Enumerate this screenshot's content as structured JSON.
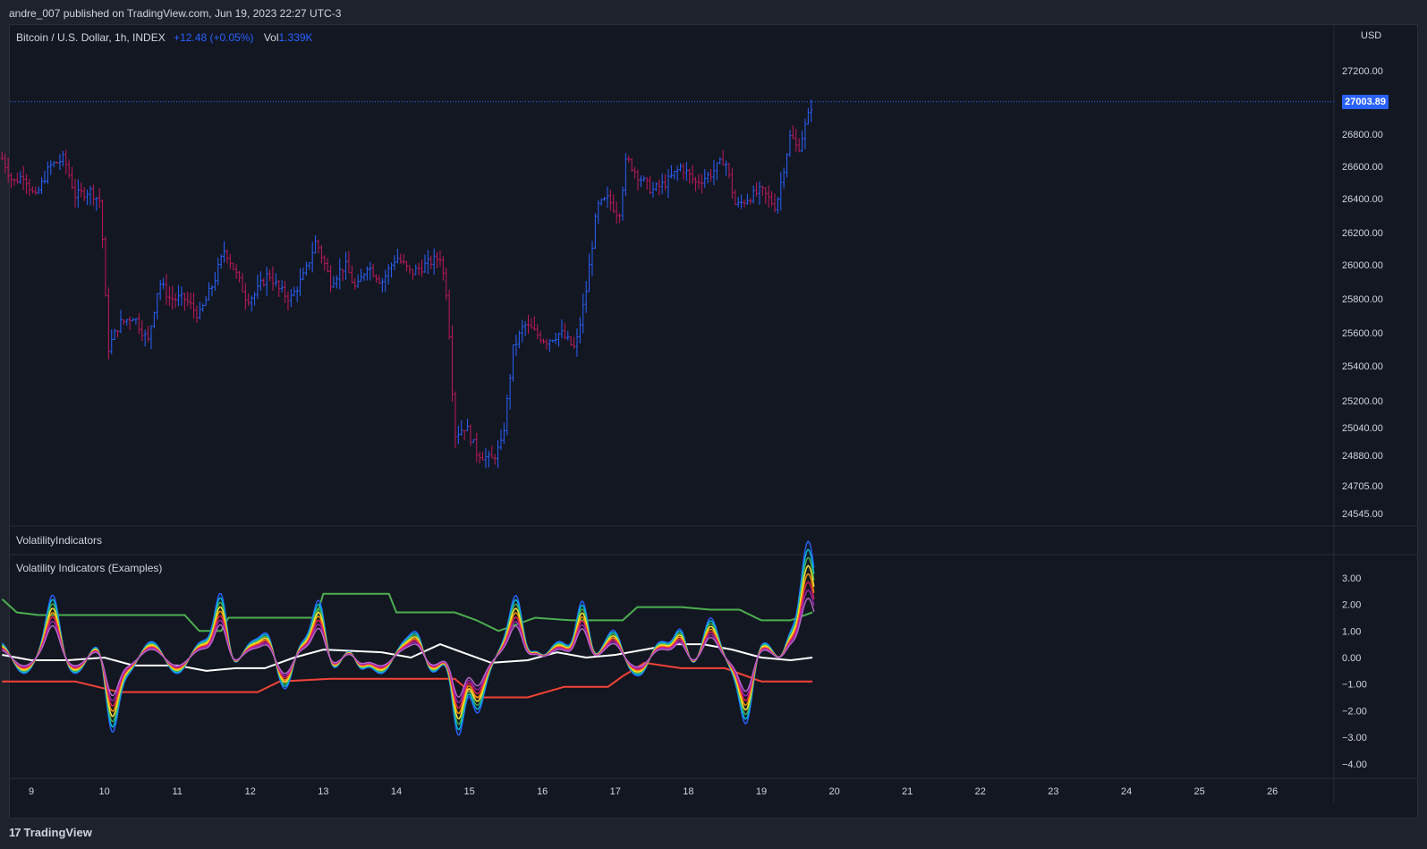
{
  "header": {
    "publisher_line": "andre_007 published on TradingView.com, Jun 19, 2023 22:27 UTC-3"
  },
  "legend": {
    "symbol": "Bitcoin / U.S. Dollar, 1h, INDEX",
    "change": "+12.48 (+0.05%)",
    "vol_label": "Vol",
    "vol_value": "1.339K"
  },
  "price_axis": {
    "currency": "USD",
    "last_price_label": "27003.89",
    "ticks": [
      "27200.00",
      "26800.00",
      "26600.00",
      "26400.00",
      "26200.00",
      "26000.00",
      "25800.00",
      "25600.00",
      "25400.00",
      "25200.00",
      "25040.00",
      "24880.00",
      "24705.00",
      "24545.00"
    ]
  },
  "panes": {
    "volatility_header": "VolatilityIndicators",
    "indicator_title": "Volatility Indicators (Examples)"
  },
  "time_axis": {
    "labels": [
      "9",
      "10",
      "11",
      "12",
      "13",
      "14",
      "15",
      "16",
      "17",
      "18",
      "19",
      "20",
      "21",
      "22",
      "23",
      "24",
      "25",
      "26"
    ]
  },
  "footer": {
    "brand": "TradingView",
    "logo_glyph": "17"
  },
  "colors": {
    "background": "#131722",
    "bull": "#2962ff",
    "bear": "#c2185b",
    "upper_band": "#4caf50",
    "lower_band": "#f44336",
    "mid_line": "#ffffff",
    "price_line": "#2962ff"
  },
  "chart_data": [
    {
      "type": "candlestick",
      "title": "Bitcoin / U.S. Dollar, 1h, INDEX",
      "x_unit": "day",
      "y_range": [
        24545,
        27300
      ],
      "last_price": 27003.89,
      "closes": [
        [
          8.6,
          26650
        ],
        [
          8.75,
          26500
        ],
        [
          8.9,
          26550
        ],
        [
          9.05,
          26400
        ],
        [
          9.25,
          26600
        ],
        [
          9.45,
          26650
        ],
        [
          9.6,
          26420
        ],
        [
          9.8,
          26450
        ],
        [
          9.95,
          26380
        ],
        [
          10.05,
          25500
        ],
        [
          10.2,
          25650
        ],
        [
          10.4,
          25700
        ],
        [
          10.6,
          25550
        ],
        [
          10.75,
          25900
        ],
        [
          10.9,
          25800
        ],
        [
          11.1,
          25800
        ],
        [
          11.3,
          25700
        ],
        [
          11.5,
          25900
        ],
        [
          11.65,
          26100
        ],
        [
          11.8,
          25950
        ],
        [
          11.95,
          25800
        ],
        [
          12.05,
          25820
        ],
        [
          12.25,
          25950
        ],
        [
          12.4,
          25850
        ],
        [
          12.55,
          25800
        ],
        [
          12.75,
          25950
        ],
        [
          12.9,
          26150
        ],
        [
          13.1,
          25900
        ],
        [
          13.3,
          26000
        ],
        [
          13.45,
          25850
        ],
        [
          13.6,
          26000
        ],
        [
          13.8,
          25900
        ],
        [
          14.0,
          26050
        ],
        [
          14.2,
          25950
        ],
        [
          14.4,
          26000
        ],
        [
          14.6,
          26050
        ],
        [
          14.7,
          25800
        ],
        [
          14.8,
          25000
        ],
        [
          14.95,
          25050
        ],
        [
          15.1,
          24900
        ],
        [
          15.3,
          24850
        ],
        [
          15.45,
          24950
        ],
        [
          15.6,
          25500
        ],
        [
          15.75,
          25650
        ],
        [
          15.9,
          25600
        ],
        [
          16.05,
          25550
        ],
        [
          16.25,
          25600
        ],
        [
          16.45,
          25500
        ],
        [
          16.6,
          25850
        ],
        [
          16.75,
          26350
        ],
        [
          16.9,
          26400
        ],
        [
          17.05,
          26300
        ],
        [
          17.15,
          26650
        ],
        [
          17.3,
          26550
        ],
        [
          17.5,
          26450
        ],
        [
          17.7,
          26500
        ],
        [
          17.9,
          26600
        ],
        [
          18.1,
          26500
        ],
        [
          18.3,
          26550
        ],
        [
          18.5,
          26650
        ],
        [
          18.65,
          26350
        ],
        [
          18.8,
          26400
        ],
        [
          19.0,
          26450
        ],
        [
          19.2,
          26350
        ],
        [
          19.4,
          26800
        ],
        [
          19.5,
          26700
        ],
        [
          19.6,
          26850
        ],
        [
          19.7,
          27003
        ]
      ]
    },
    {
      "type": "line",
      "title": "Volatility Indicators (Examples)",
      "y_range": [
        -4.5,
        3.3
      ],
      "y_ticks": [
        "3.00",
        "2.00",
        "1.00",
        "0.00",
        "−1.00",
        "−2.00",
        "−3.00",
        "−4.00"
      ],
      "series": [
        {
          "points": [
            [
              8.6,
              2.2
            ],
            [
              8.8,
              1.7
            ],
            [
              9.1,
              1.6
            ],
            [
              9.4,
              1.6
            ],
            [
              10.5,
              1.6
            ],
            [
              11.1,
              1.6
            ],
            [
              11.3,
              1.0
            ],
            [
              11.6,
              1.0
            ],
            [
              11.7,
              1.5
            ],
            [
              12.2,
              1.5
            ],
            [
              12.9,
              1.5
            ],
            [
              13.0,
              2.4
            ],
            [
              13.6,
              2.4
            ],
            [
              13.9,
              2.4
            ],
            [
              14.0,
              1.7
            ],
            [
              14.3,
              1.7
            ],
            [
              14.8,
              1.7
            ],
            [
              15.1,
              1.4
            ],
            [
              15.4,
              1.0
            ],
            [
              15.9,
              1.5
            ],
            [
              16.4,
              1.4
            ],
            [
              17.1,
              1.4
            ],
            [
              17.3,
              1.9
            ],
            [
              17.9,
              1.9
            ],
            [
              18.3,
              1.8
            ],
            [
              18.7,
              1.8
            ],
            [
              19.0,
              1.4
            ],
            [
              19.4,
              1.4
            ],
            [
              19.7,
              1.7
            ]
          ]
        },
        {
          "points": [
            [
              8.6,
              -0.9
            ],
            [
              9.6,
              -0.9
            ],
            [
              10.2,
              -1.3
            ],
            [
              12.1,
              -1.3
            ],
            [
              12.4,
              -0.9
            ],
            [
              13.1,
              -0.8
            ],
            [
              14.8,
              -0.8
            ],
            [
              15.1,
              -1.5
            ],
            [
              15.8,
              -1.5
            ],
            [
              16.3,
              -1.1
            ],
            [
              16.9,
              -1.1
            ],
            [
              17.1,
              -0.7
            ],
            [
              17.4,
              -0.2
            ],
            [
              17.9,
              -0.4
            ],
            [
              18.5,
              -0.4
            ],
            [
              19.0,
              -0.9
            ],
            [
              19.7,
              -0.9
            ]
          ]
        },
        {
          "points": [
            [
              8.6,
              0.1
            ],
            [
              9.0,
              -0.1
            ],
            [
              9.5,
              -0.1
            ],
            [
              10.0,
              0.0
            ],
            [
              10.4,
              -0.3
            ],
            [
              11.0,
              -0.3
            ],
            [
              11.4,
              -0.5
            ],
            [
              11.8,
              -0.4
            ],
            [
              12.2,
              -0.4
            ],
            [
              12.6,
              0.0
            ],
            [
              13.0,
              0.3
            ],
            [
              13.8,
              0.2
            ],
            [
              14.2,
              0.0
            ],
            [
              14.6,
              0.5
            ],
            [
              14.9,
              0.2
            ],
            [
              15.3,
              -0.2
            ],
            [
              15.8,
              -0.1
            ],
            [
              16.2,
              0.2
            ],
            [
              16.6,
              0.0
            ],
            [
              17.0,
              0.1
            ],
            [
              17.4,
              0.3
            ],
            [
              17.8,
              0.5
            ],
            [
              18.2,
              0.5
            ],
            [
              18.6,
              0.3
            ],
            [
              19.0,
              0.0
            ],
            [
              19.4,
              -0.1
            ],
            [
              19.7,
              0.0
            ]
          ]
        }
      ]
    }
  ]
}
